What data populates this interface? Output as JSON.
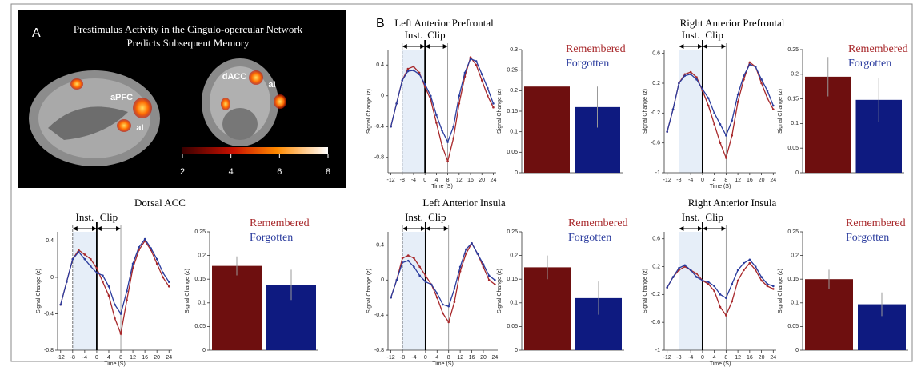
{
  "panel_a": {
    "letter": "A",
    "title_lines": [
      "Prestimulus Activity in the Cingulo-opercular Network",
      "Predicts Subsequent Memory"
    ],
    "region_labels": [
      "aPFC",
      "aI",
      "dACC",
      "aI"
    ],
    "colorbar": {
      "lim": [
        2,
        8
      ],
      "ticks": [
        2,
        4,
        6,
        8
      ]
    }
  },
  "panel_b_letter": "B",
  "chart_data": [
    {
      "type": "line",
      "title": "Left Anterior Prefrontal",
      "xlabel": "Time (S)",
      "ylabel": "Signal Change (z)",
      "x": [
        -12,
        -10,
        -8,
        -6,
        -4,
        -2,
        0,
        2,
        4,
        6,
        8,
        10,
        12,
        14,
        16,
        18,
        20,
        22,
        24
      ],
      "xlim": [
        -13,
        25
      ],
      "xticks": [
        -12,
        -8,
        -4,
        0,
        4,
        8,
        12,
        16,
        20,
        24
      ],
      "ylim": [
        -1.0,
        0.6
      ],
      "yticks": [
        -0.8,
        -0.4,
        0,
        0.4
      ],
      "events": [
        {
          "label": "Inst.",
          "start": -8,
          "end": 0
        },
        {
          "label": "Clip",
          "start": 0,
          "end": 8
        }
      ],
      "series": [
        {
          "name": "Remembered",
          "color": "#a8282b",
          "values": [
            -0.4,
            -0.1,
            0.2,
            0.35,
            0.38,
            0.3,
            0.12,
            -0.05,
            -0.35,
            -0.65,
            -0.85,
            -0.55,
            -0.1,
            0.25,
            0.5,
            0.4,
            0.2,
            0.0,
            -0.15
          ]
        },
        {
          "name": "Forgotten",
          "color": "#2b3c9e",
          "values": [
            -0.4,
            -0.1,
            0.2,
            0.32,
            0.33,
            0.28,
            0.15,
            0.0,
            -0.25,
            -0.45,
            -0.6,
            -0.4,
            0.0,
            0.3,
            0.48,
            0.45,
            0.28,
            0.1,
            -0.1
          ]
        }
      ],
      "bars": {
        "ylabel": "Signal Change (z)",
        "ylim": [
          0,
          0.3
        ],
        "yticks": [
          0,
          0.05,
          0.1,
          0.15,
          0.2,
          0.25,
          0.3
        ],
        "values": [
          0.21,
          0.16
        ],
        "errors": [
          0.05,
          0.05
        ],
        "colors": [
          "#6e0f0f",
          "#0e1a80"
        ]
      }
    },
    {
      "type": "line",
      "title": "Right Anterior Prefrontal",
      "xlabel": "Time (S)",
      "ylabel": "Signal Change (z)",
      "x": [
        -12,
        -10,
        -8,
        -6,
        -4,
        -2,
        0,
        2,
        4,
        6,
        8,
        10,
        12,
        14,
        16,
        18,
        20,
        22,
        24
      ],
      "xlim": [
        -13,
        25
      ],
      "xticks": [
        -12,
        -8,
        -4,
        0,
        4,
        8,
        12,
        16,
        20,
        24
      ],
      "ylim": [
        -1.0,
        0.65
      ],
      "yticks": [
        -1,
        -0.6,
        -0.2,
        0.2,
        0.6
      ],
      "events": [
        {
          "label": "Inst.",
          "start": -8,
          "end": 0
        },
        {
          "label": "Clip",
          "start": 0,
          "end": 8
        }
      ],
      "series": [
        {
          "name": "Remembered",
          "color": "#a8282b",
          "values": [
            -0.45,
            -0.15,
            0.2,
            0.32,
            0.35,
            0.28,
            0.1,
            -0.1,
            -0.35,
            -0.6,
            -0.8,
            -0.5,
            -0.05,
            0.25,
            0.48,
            0.42,
            0.2,
            0.0,
            -0.15
          ]
        },
        {
          "name": "Forgotten",
          "color": "#2b3c9e",
          "values": [
            -0.45,
            -0.15,
            0.2,
            0.3,
            0.32,
            0.25,
            0.12,
            0.0,
            -0.2,
            -0.35,
            -0.5,
            -0.3,
            0.05,
            0.3,
            0.45,
            0.42,
            0.25,
            0.1,
            -0.1
          ]
        }
      ],
      "bars": {
        "ylabel": "Signal Change (z)",
        "ylim": [
          0,
          0.25
        ],
        "yticks": [
          0,
          0.05,
          0.1,
          0.15,
          0.2,
          0.25
        ],
        "values": [
          0.195,
          0.148
        ],
        "errors": [
          0.04,
          0.045
        ],
        "colors": [
          "#6e0f0f",
          "#0e1a80"
        ]
      }
    },
    {
      "type": "line",
      "title": "Dorsal ACC",
      "xlabel": "Time (S)",
      "ylabel": "Signal Change (z)",
      "x": [
        -12,
        -10,
        -8,
        -6,
        -4,
        -2,
        0,
        2,
        4,
        6,
        8,
        10,
        12,
        14,
        16,
        18,
        20,
        22,
        24
      ],
      "xlim": [
        -13,
        25
      ],
      "xticks": [
        -12,
        -8,
        -4,
        0,
        4,
        8,
        12,
        16,
        20,
        24
      ],
      "ylim": [
        -0.8,
        0.5
      ],
      "yticks": [
        -0.8,
        -0.4,
        0,
        0.4
      ],
      "events": [
        {
          "label": "Inst.",
          "start": -8,
          "end": 0
        },
        {
          "label": "Clip",
          "start": 0,
          "end": 8
        }
      ],
      "series": [
        {
          "name": "Remembered",
          "color": "#a8282b",
          "values": [
            -0.3,
            -0.05,
            0.2,
            0.3,
            0.25,
            0.2,
            0.1,
            -0.05,
            -0.2,
            -0.45,
            -0.62,
            -0.25,
            0.1,
            0.3,
            0.4,
            0.3,
            0.15,
            0.0,
            -0.1
          ]
        },
        {
          "name": "Forgotten",
          "color": "#2b3c9e",
          "values": [
            -0.3,
            -0.05,
            0.2,
            0.28,
            0.2,
            0.12,
            0.05,
            0.02,
            -0.1,
            -0.3,
            -0.4,
            -0.15,
            0.15,
            0.33,
            0.42,
            0.32,
            0.2,
            0.05,
            -0.05
          ]
        }
      ],
      "bars": {
        "ylabel": "Signal Change (z)",
        "ylim": [
          0,
          0.25
        ],
        "yticks": [
          0,
          0.05,
          0.1,
          0.15,
          0.2,
          0.25
        ],
        "values": [
          0.178,
          0.138
        ],
        "errors": [
          0.02,
          0.032
        ],
        "colors": [
          "#6e0f0f",
          "#0e1a80"
        ]
      }
    },
    {
      "type": "line",
      "title": "Left Anterior Insula",
      "xlabel": "Time (S)",
      "ylabel": "Signal Change (z)",
      "x": [
        -12,
        -10,
        -8,
        -6,
        -4,
        -2,
        0,
        2,
        4,
        6,
        8,
        10,
        12,
        14,
        16,
        18,
        20,
        22,
        24
      ],
      "xlim": [
        -13,
        25
      ],
      "xticks": [
        -12,
        -8,
        -4,
        0,
        4,
        8,
        12,
        16,
        20,
        24
      ],
      "ylim": [
        -0.8,
        0.55
      ],
      "yticks": [
        -0.8,
        -0.4,
        0,
        0.4
      ],
      "events": [
        {
          "label": "Inst.",
          "start": -8,
          "end": 0
        },
        {
          "label": "Clip",
          "start": 0,
          "end": 8
        }
      ],
      "series": [
        {
          "name": "Remembered",
          "color": "#a8282b",
          "values": [
            -0.2,
            0.0,
            0.25,
            0.28,
            0.25,
            0.15,
            0.05,
            -0.05,
            -0.2,
            -0.38,
            -0.48,
            -0.25,
            0.1,
            0.3,
            0.42,
            0.3,
            0.15,
            0.0,
            -0.05
          ]
        },
        {
          "name": "Forgotten",
          "color": "#2b3c9e",
          "values": [
            -0.2,
            0.0,
            0.2,
            0.22,
            0.15,
            0.05,
            -0.02,
            -0.05,
            -0.15,
            -0.28,
            -0.3,
            -0.1,
            0.15,
            0.35,
            0.42,
            0.3,
            0.18,
            0.05,
            0.0
          ]
        }
      ],
      "bars": {
        "ylabel": "Signal Change (z)",
        "ylim": [
          0,
          0.25
        ],
        "yticks": [
          0,
          0.05,
          0.1,
          0.15,
          0.2,
          0.25
        ],
        "values": [
          0.175,
          0.11
        ],
        "errors": [
          0.025,
          0.035
        ],
        "colors": [
          "#6e0f0f",
          "#0e1a80"
        ]
      }
    },
    {
      "type": "line",
      "title": "Right Anterior Insula",
      "xlabel": "Time (S)",
      "ylabel": "Signal Change (z)",
      "x": [
        -12,
        -10,
        -8,
        -6,
        -4,
        -2,
        0,
        2,
        4,
        6,
        8,
        10,
        12,
        14,
        16,
        18,
        20,
        22,
        24
      ],
      "xlim": [
        -13,
        25
      ],
      "xticks": [
        -12,
        -8,
        -4,
        0,
        4,
        8,
        12,
        16,
        20,
        24
      ],
      "ylim": [
        -1.0,
        0.7
      ],
      "yticks": [
        -1,
        -0.6,
        -0.2,
        0.2,
        0.6
      ],
      "events": [
        {
          "label": "Inst.",
          "start": -8,
          "end": 0
        },
        {
          "label": "Clip",
          "start": 0,
          "end": 8
        }
      ],
      "series": [
        {
          "name": "Remembered",
          "color": "#a8282b",
          "values": [
            -0.1,
            0.05,
            0.15,
            0.2,
            0.15,
            0.1,
            0.0,
            -0.05,
            -0.15,
            -0.38,
            -0.5,
            -0.3,
            0.0,
            0.15,
            0.25,
            0.15,
            0.0,
            -0.08,
            -0.12
          ]
        },
        {
          "name": "Forgotten",
          "color": "#2b3c9e",
          "values": [
            -0.1,
            0.05,
            0.18,
            0.22,
            0.15,
            0.05,
            0.0,
            -0.02,
            -0.08,
            -0.2,
            -0.25,
            -0.05,
            0.15,
            0.25,
            0.3,
            0.2,
            0.05,
            -0.05,
            -0.08
          ]
        }
      ],
      "bars": {
        "ylabel": "Signal Change (z)",
        "ylim": [
          0,
          0.25
        ],
        "yticks": [
          0,
          0.05,
          0.1,
          0.15,
          0.2,
          0.25
        ],
        "values": [
          0.15,
          0.097
        ],
        "errors": [
          0.02,
          0.025
        ],
        "colors": [
          "#6e0f0f",
          "#0e1a80"
        ]
      }
    }
  ]
}
